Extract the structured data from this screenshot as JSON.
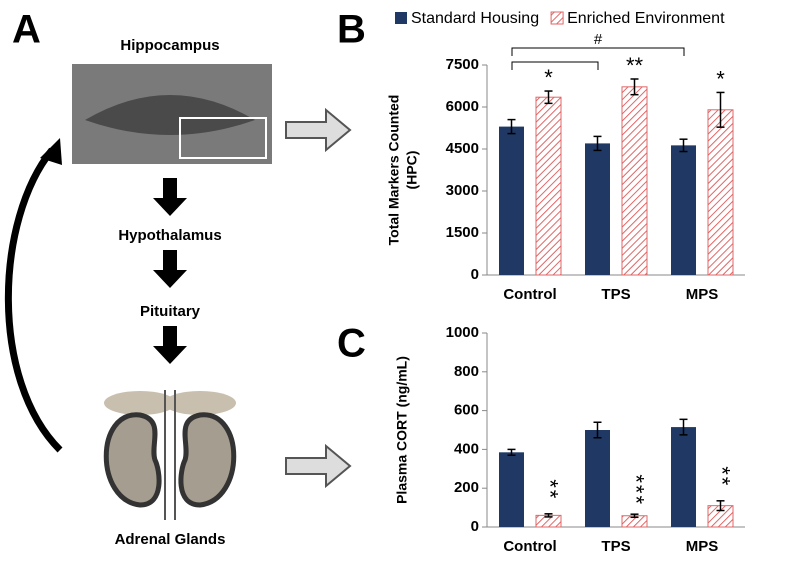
{
  "panels": [
    "A",
    "B",
    "C"
  ],
  "diagram": {
    "nodes": [
      "Hippocampus",
      "Hypothalamus",
      "Pituitary",
      "Adrenal Glands"
    ]
  },
  "chart_data": [
    {
      "type": "bar",
      "categories": [
        "Control",
        "TPS",
        "MPS"
      ],
      "ylabel": [
        "Total Markers Counted",
        "(HPC)"
      ],
      "series": [
        {
          "name": "Standard Housing",
          "color": "#1f3864",
          "values": [
            5300,
            4700,
            4630
          ],
          "errors": [
            250,
            250,
            220
          ]
        },
        {
          "name": "Enriched Environment",
          "color": "#e06666",
          "hatched": true,
          "values": [
            6350,
            6720,
            5900
          ],
          "errors": [
            220,
            280,
            620
          ]
        }
      ],
      "annotations": [
        "*",
        "**",
        "*"
      ],
      "bracket_label": "#",
      "ylim": [
        0,
        7500
      ],
      "yticks": [
        0,
        1500,
        3000,
        4500,
        6000,
        7500
      ],
      "legend": "top"
    },
    {
      "type": "bar",
      "categories": [
        "Control",
        "TPS",
        "MPS"
      ],
      "ylabel": [
        "Plasma CORT (ng/mL)"
      ],
      "series": [
        {
          "color": "#1f3864",
          "values": [
            385,
            500,
            515
          ],
          "errors": [
            15,
            40,
            40
          ]
        },
        {
          "color": "#e06666",
          "hatched": true,
          "values": [
            60,
            58,
            110
          ],
          "errors": [
            8,
            8,
            25
          ]
        }
      ],
      "annotations": [
        "**",
        "***",
        "**"
      ],
      "ylim": [
        0,
        1000
      ],
      "yticks": [
        0,
        200,
        400,
        600,
        800,
        1000
      ]
    }
  ]
}
